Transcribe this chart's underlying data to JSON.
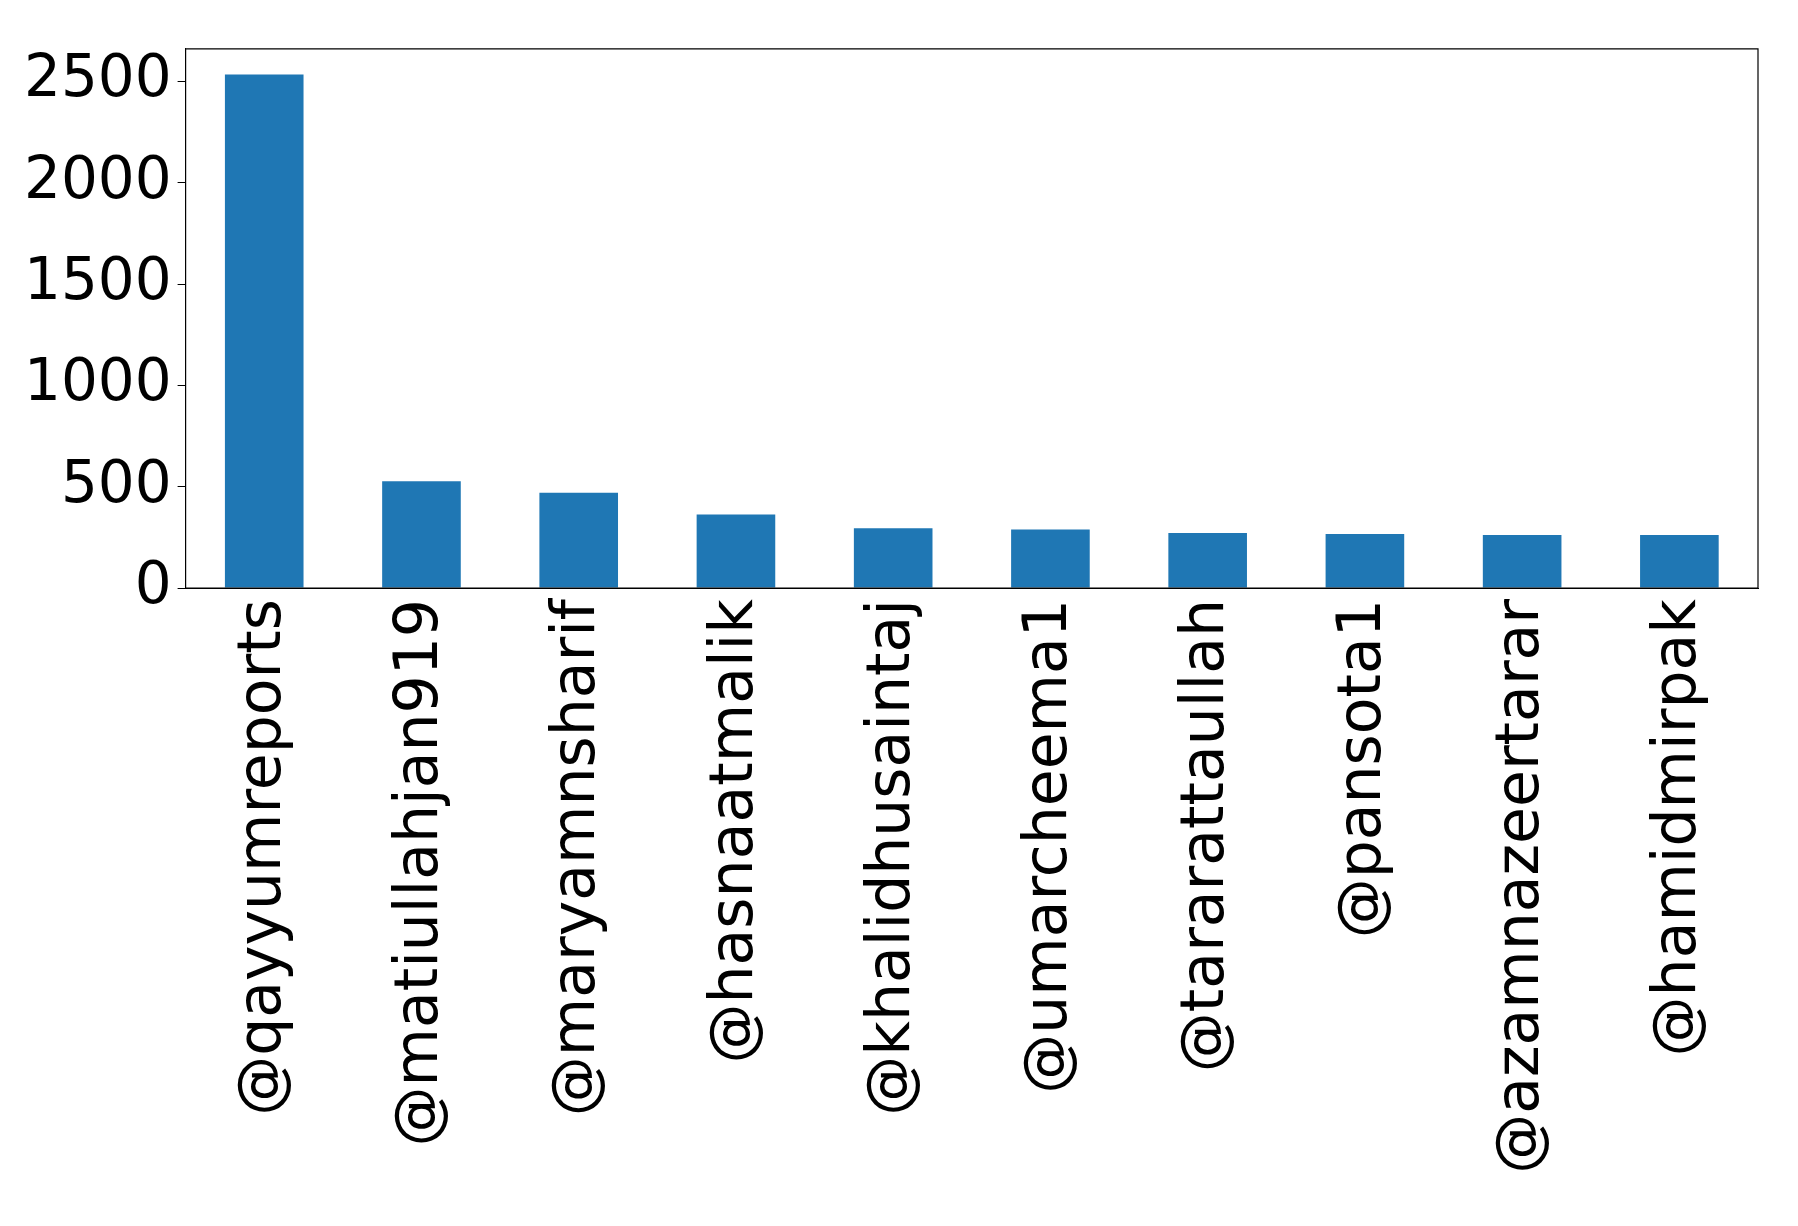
{
  "chart_data": {
    "type": "bar",
    "categories": [
      "@qayyumreports",
      "@matiullahjan919",
      "@maryamnsharif",
      "@hasnaatmalik",
      "@khalidhusaintaj",
      "@umarcheema1",
      "@tararattaullah",
      "@pansota1",
      "@azamnazeertarar",
      "@hamidmirpak"
    ],
    "values": [
      2534,
      527,
      470,
      363,
      295,
      289,
      272,
      266,
      261,
      261
    ],
    "color": "#1f77b4",
    "ylim": [
      0,
      2661
    ],
    "yticks": [
      0,
      500,
      1000,
      1500,
      2000,
      2500
    ],
    "grid": false,
    "legend": false
  }
}
